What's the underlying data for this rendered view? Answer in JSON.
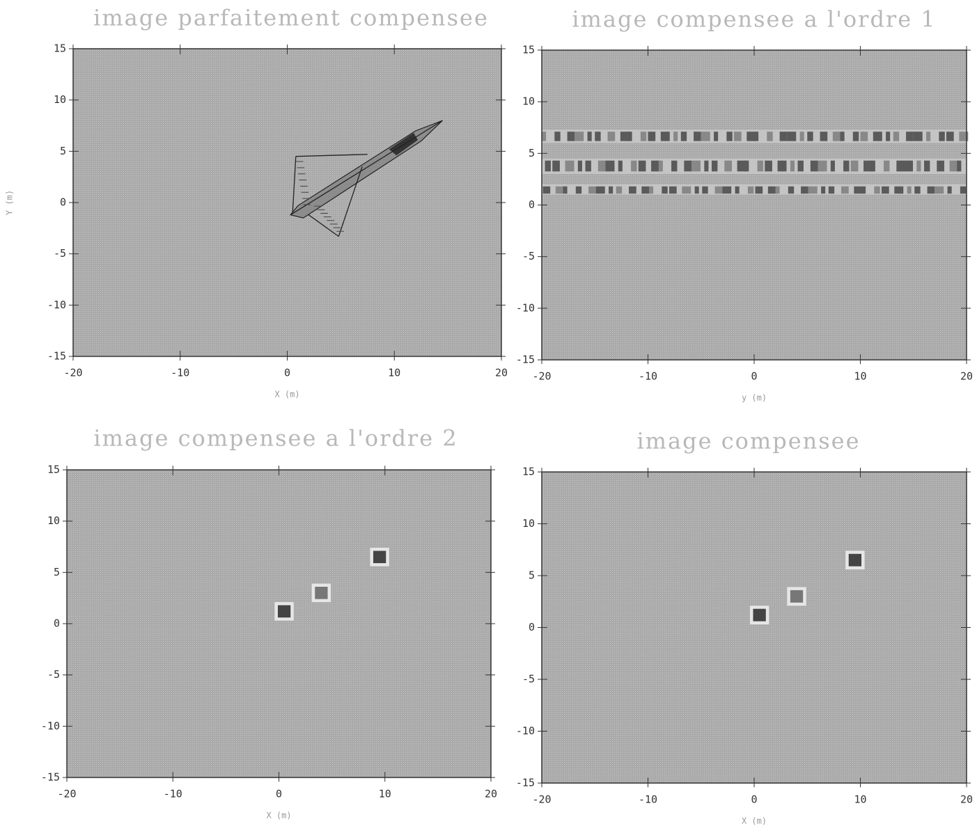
{
  "chart_data": [
    {
      "type": "image",
      "title": "image parfaitement compensee",
      "xlabel": "X (m)",
      "ylabel": "Y (m)",
      "xlim": [
        -20,
        20
      ],
      "ylim": [
        -15,
        15
      ],
      "xticks": [
        -20,
        -10,
        0,
        10,
        20
      ],
      "yticks": [
        -15,
        -10,
        -5,
        0,
        5,
        10,
        15
      ]
    },
    {
      "type": "image",
      "title": "image compensee a l'ordre 1",
      "xlabel": "y (m)",
      "xlim": [
        -20,
        20
      ],
      "ylim": [
        -15,
        15
      ],
      "xticks": [
        -20,
        -10,
        0,
        10,
        20
      ],
      "yticks": [
        -15,
        -10,
        -5,
        0,
        5,
        10,
        15
      ]
    },
    {
      "type": "image",
      "title": "image compensee a l'ordre 2",
      "xlabel": "X (m)",
      "xlim": [
        -20,
        20
      ],
      "ylim": [
        -15,
        15
      ],
      "xticks": [
        -20,
        -10,
        0,
        10,
        20
      ],
      "yticks": [
        -15,
        -10,
        -5,
        0,
        5,
        10,
        15
      ]
    },
    {
      "type": "image",
      "title": "image compensee",
      "xlabel": "X (m)",
      "xlim": [
        -20,
        20
      ],
      "ylim": [
        -15,
        15
      ],
      "xticks": [
        -20,
        -10,
        0,
        10,
        20
      ],
      "yticks": [
        -15,
        -10,
        -5,
        0,
        5,
        10,
        15
      ]
    }
  ]
}
